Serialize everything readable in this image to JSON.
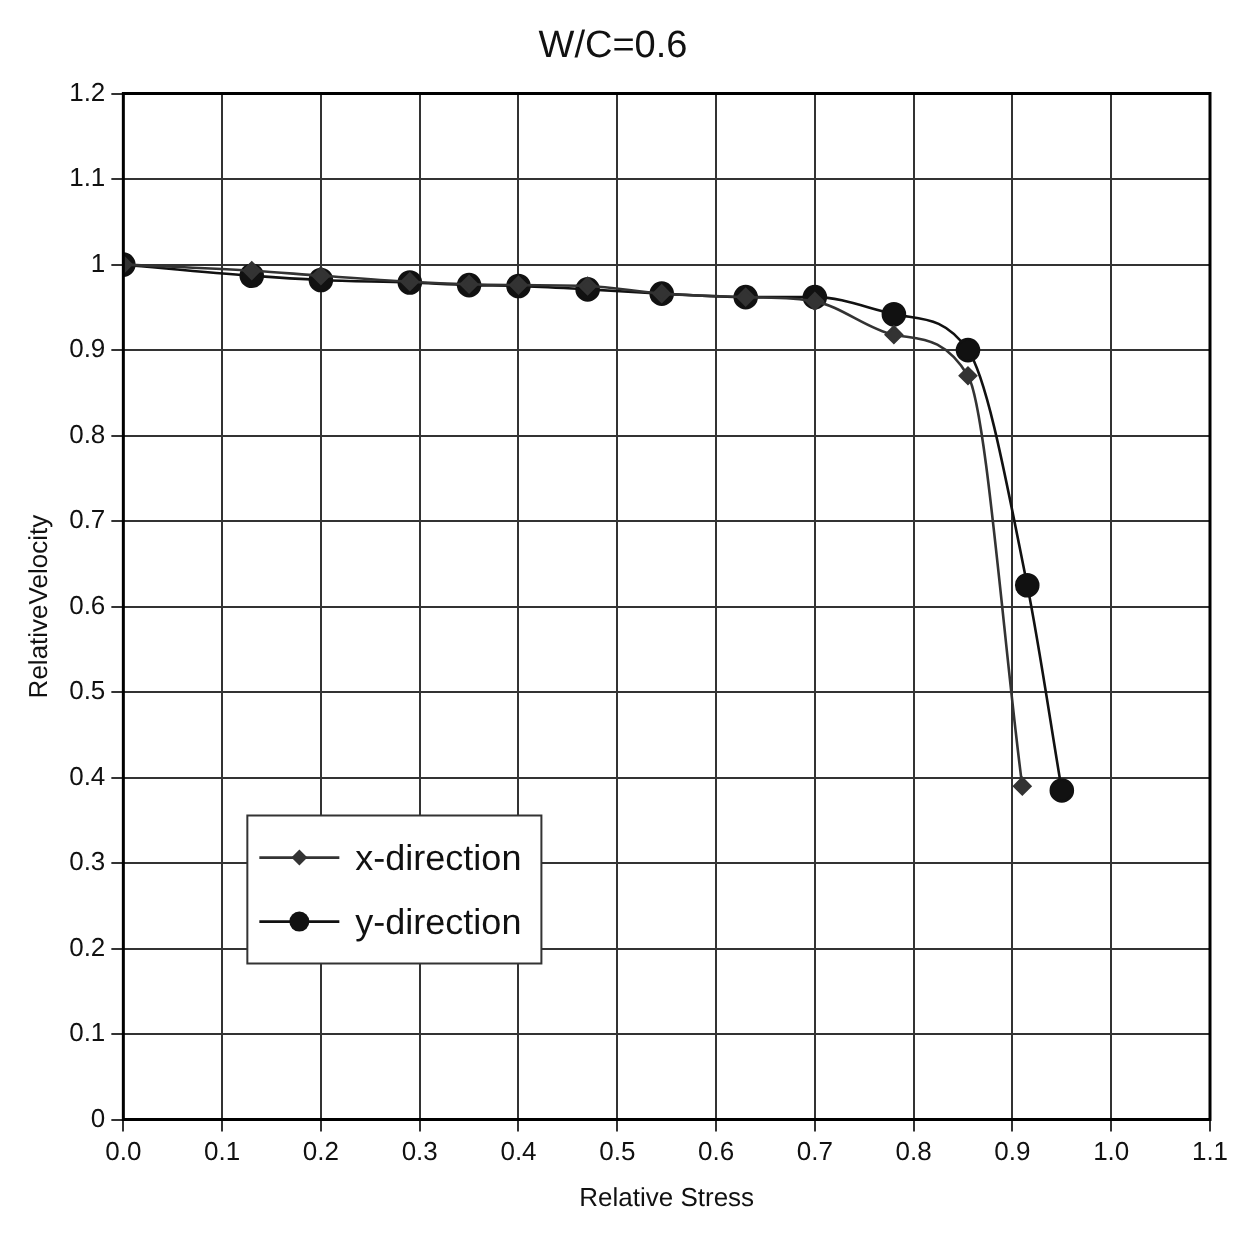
{
  "chart_data": {
    "type": "line",
    "title": "W/C=0.6",
    "xlabel": "Relative Stress",
    "ylabel": "RelativeVelocity",
    "xlim": [
      0,
      1.1
    ],
    "ylim": [
      0,
      1.2
    ],
    "xticks": [
      {
        "value": 0,
        "label": "0.0"
      },
      0.1,
      0.2,
      0.3,
      0.4,
      0.5,
      0.6,
      0.7,
      0.8,
      0.9,
      {
        "value": 1,
        "label": "1.0"
      },
      1.1
    ],
    "yticks": [
      0,
      0.1,
      0.2,
      0.3,
      0.4,
      0.5,
      0.6,
      0.7,
      0.8,
      0.9,
      1,
      1.1,
      1.2
    ],
    "grid": true,
    "legend": "bottom left",
    "series": [
      {
        "name": "x-direction",
        "color": "#333333",
        "marker": "diamond",
        "x": [
          0,
          0.13,
          0.2,
          0.29,
          0.35,
          0.4,
          0.47,
          0.545,
          0.63,
          0.7,
          0.78,
          0.855,
          0.91
        ],
        "values": [
          1,
          0.993,
          0.987,
          0.98,
          0.977,
          0.976,
          0.975,
          0.966,
          0.962,
          0.957,
          0.918,
          0.87,
          0.39
        ]
      },
      {
        "name": "y-direction",
        "color": "#111111",
        "marker": "circle",
        "x": [
          0,
          0.13,
          0.2,
          0.29,
          0.35,
          0.4,
          0.47,
          0.545,
          0.63,
          0.7,
          0.78,
          0.855,
          0.915,
          0.95
        ],
        "values": [
          1,
          0.987,
          0.982,
          0.979,
          0.976,
          0.975,
          0.971,
          0.966,
          0.962,
          0.962,
          0.942,
          0.9,
          0.625,
          0.385
        ]
      }
    ]
  }
}
